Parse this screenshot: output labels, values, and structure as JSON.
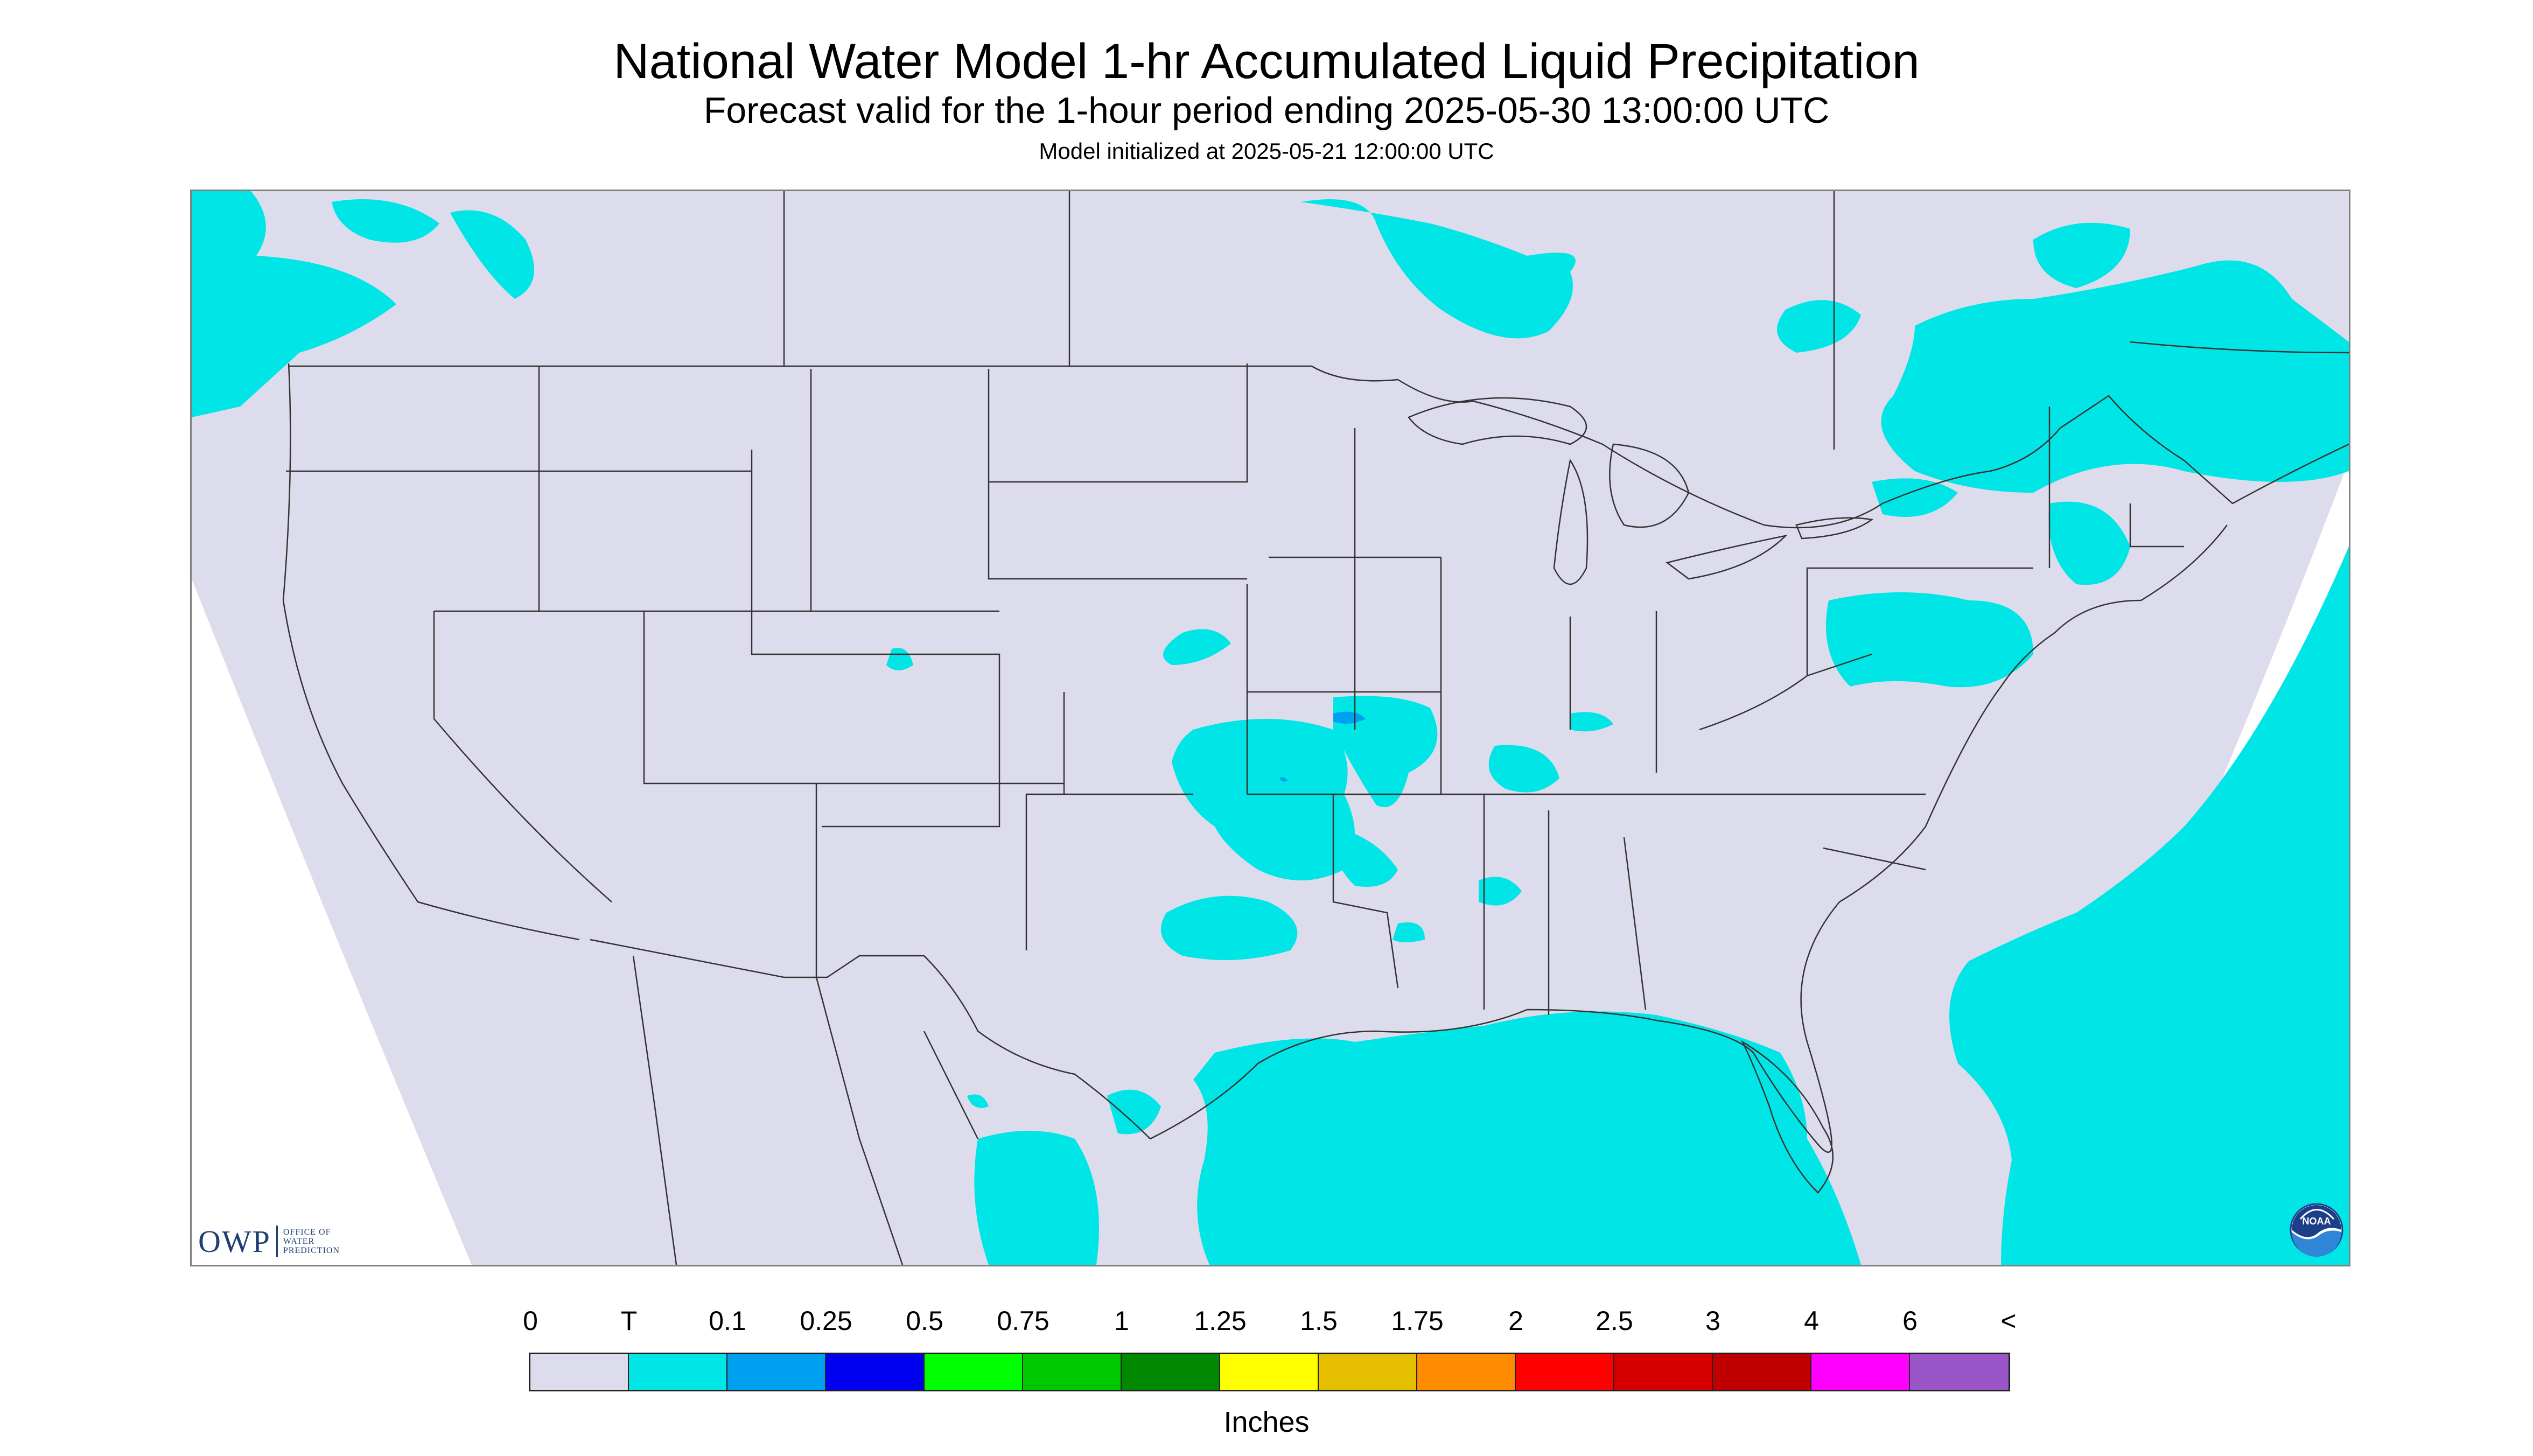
{
  "header": {
    "title": "National Water Model 1-hr Accumulated Liquid Precipitation",
    "subtitle": "Forecast valid for the 1-hour period ending 2025-05-30 13:00:00 UTC",
    "init": "Model initialized at 2025-05-21 12:00:00 UTC"
  },
  "map": {
    "background_color": "#dcdcec",
    "outside_color": "#ffffff",
    "boundary_color": "#333333",
    "trace_color": "#00e5e5",
    "light_color": "#00a0f0",
    "icon": "precipitation-map"
  },
  "legend": {
    "labels": [
      "0",
      "T",
      "0.1",
      "0.25",
      "0.5",
      "0.75",
      "1",
      "1.25",
      "1.5",
      "1.75",
      "2",
      "2.5",
      "3",
      "4",
      "6",
      "<"
    ],
    "colors": [
      "#dcdcec",
      "#00e5e5",
      "#00a0f0",
      "#0000f0",
      "#00ff00",
      "#00c800",
      "#008800",
      "#ffff00",
      "#e6be00",
      "#ff8c00",
      "#ff0000",
      "#d60000",
      "#c00000",
      "#ff00ff",
      "#9955c8"
    ],
    "units": "Inches"
  },
  "logos": {
    "owp": {
      "letters": "OWP",
      "line1": "OFFICE OF",
      "line2": "WATER",
      "line3": "PREDICTION",
      "icon": "owp-logo"
    },
    "noaa": {
      "text": "NOAA",
      "icon": "noaa-logo"
    }
  }
}
